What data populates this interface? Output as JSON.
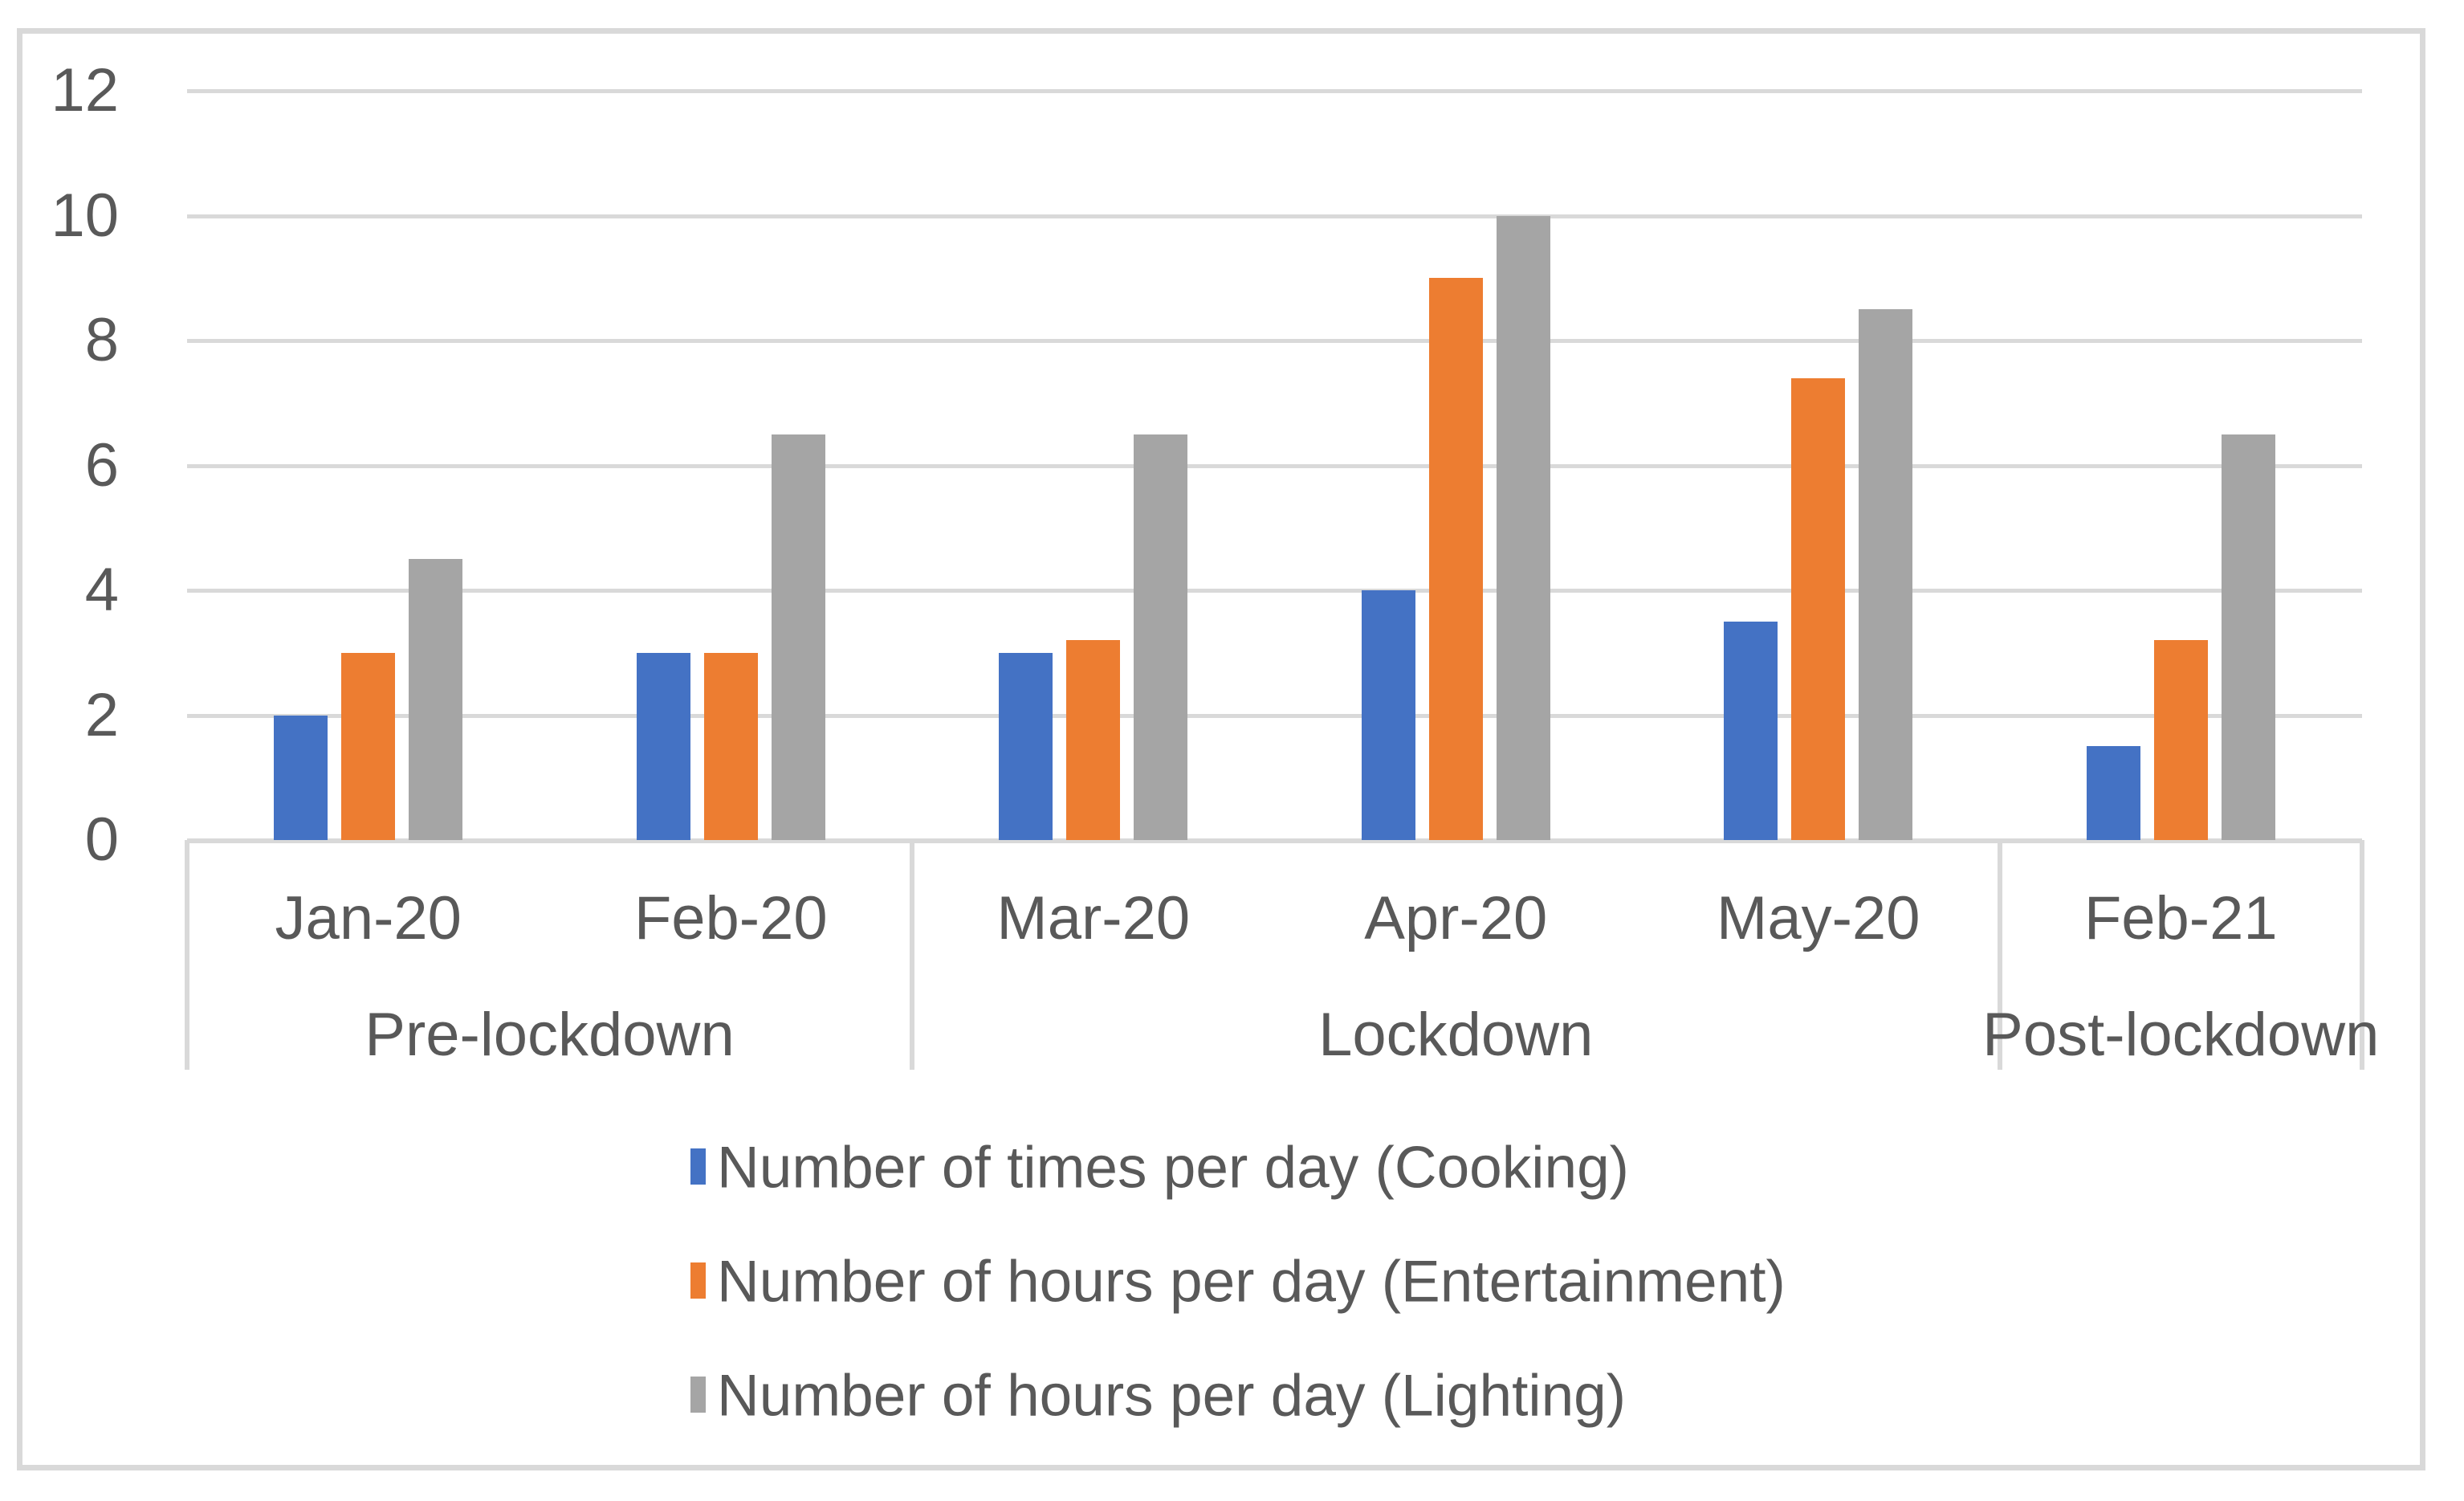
{
  "chart_data": {
    "type": "bar",
    "title": "",
    "categories": [
      "Jan-20",
      "Feb-20",
      "Mar-20",
      "Apr-20",
      "May-20",
      "Feb-21"
    ],
    "category_groups": [
      {
        "label": "Pre-lockdown",
        "span": 2
      },
      {
        "label": "Lockdown",
        "span": 3
      },
      {
        "label": "Post-lockdown",
        "span": 1
      }
    ],
    "series": [
      {
        "name": "Number of times per day (Cooking)",
        "color": "#4472C4",
        "values": [
          2,
          3,
          3,
          4,
          3.5,
          1.5
        ]
      },
      {
        "name": "Number of hours per day (Entertainment)",
        "color": "#ED7D31",
        "values": [
          3,
          3,
          3.2,
          9,
          7.4,
          3.2
        ]
      },
      {
        "name": "Number of hours per day (Lighting)",
        "color": "#A5A5A5",
        "values": [
          4.5,
          6.5,
          6.5,
          10,
          8.5,
          6.5
        ]
      }
    ],
    "y_axis": {
      "min": 0,
      "max": 12,
      "ticks": [
        0,
        2,
        4,
        6,
        8,
        10,
        12
      ]
    },
    "grid": true,
    "legend_position": "bottom",
    "colors": {
      "gridline": "#D9D9D9",
      "axis_text": "#595959",
      "frame_border": "#D9D9D9"
    }
  }
}
